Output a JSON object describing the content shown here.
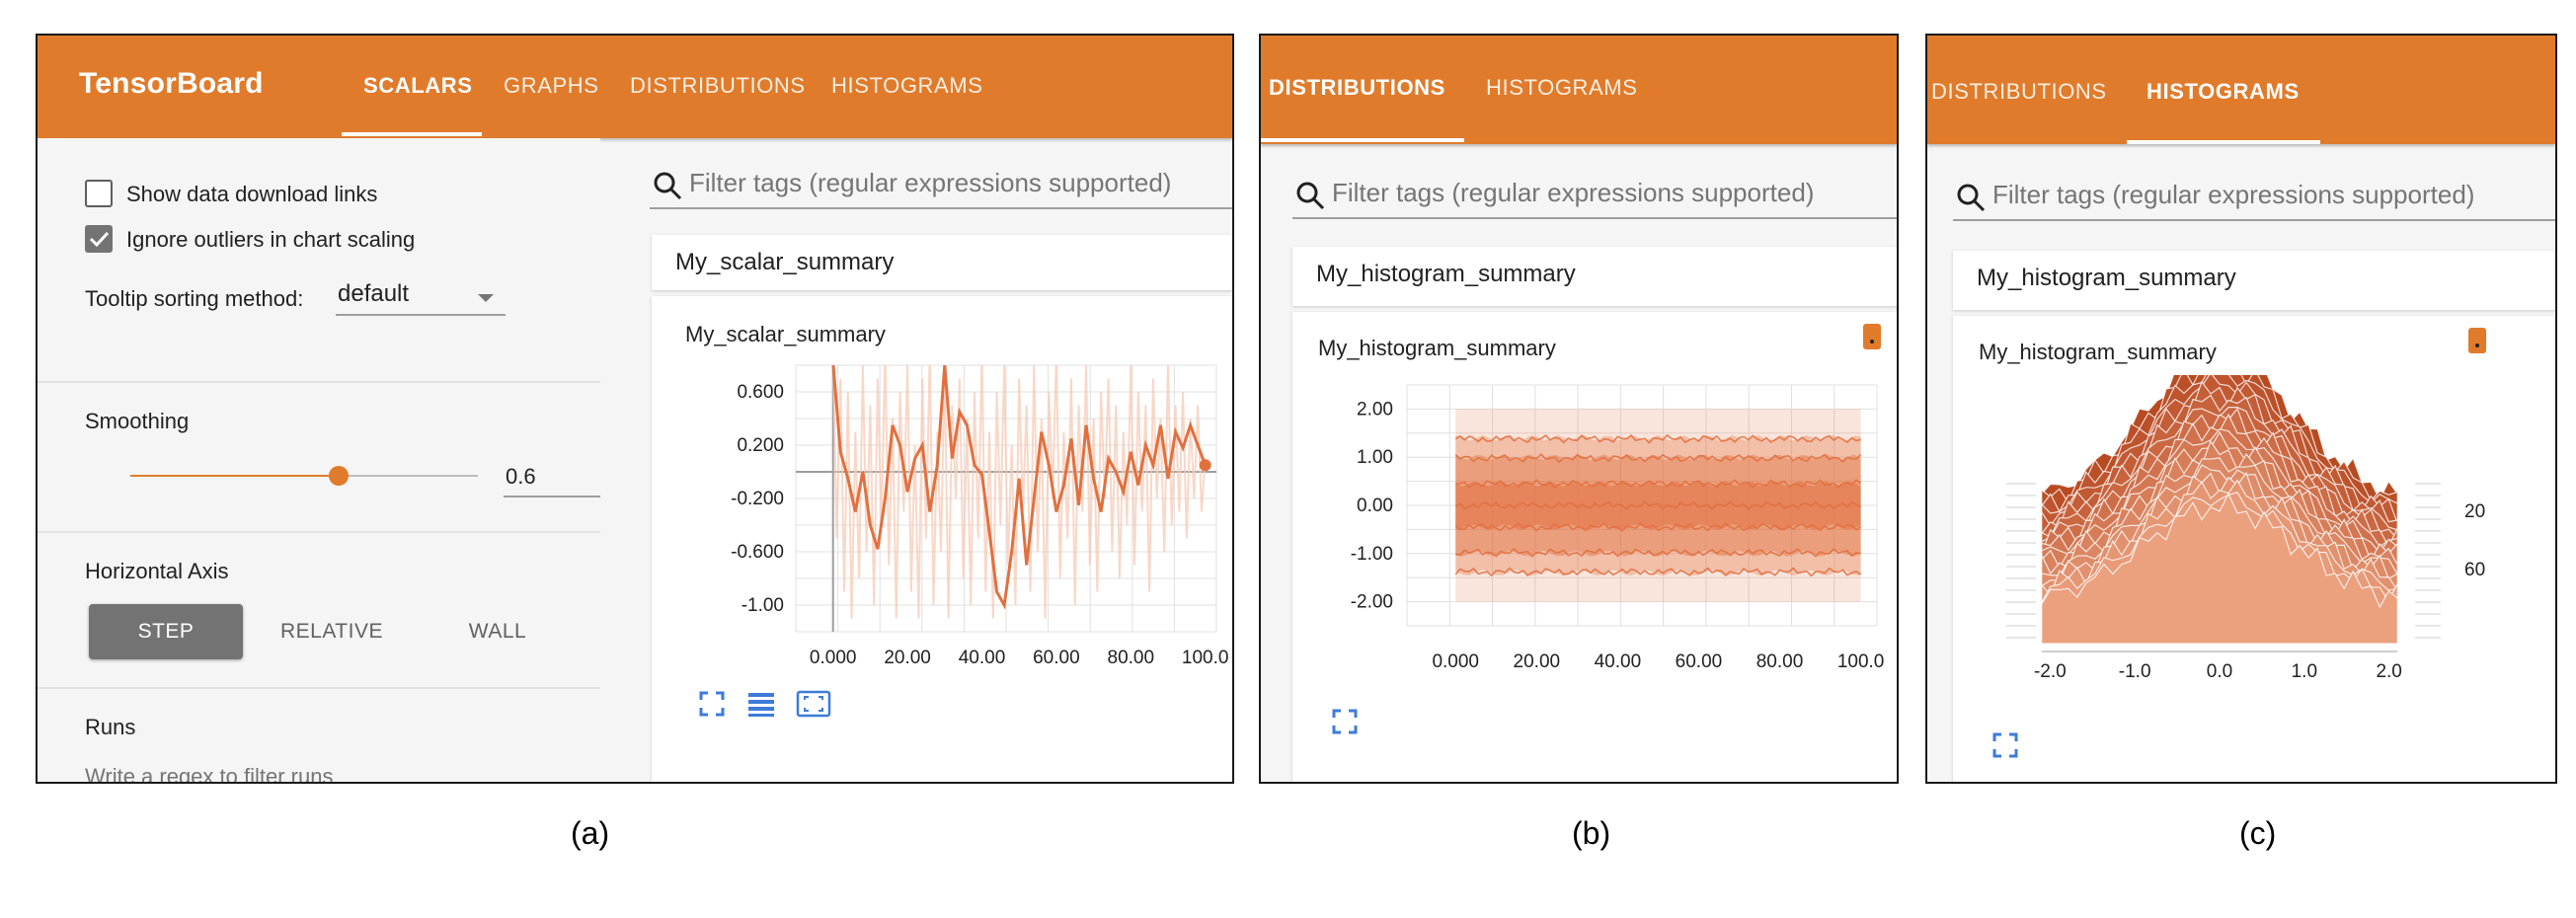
{
  "colors": {
    "accent": "#e07b2c",
    "chart_line": "#e2703f",
    "chart_light": "#f7c9b4",
    "hist_dark": "#b84a22",
    "hist_light": "#eba07e"
  },
  "panel_a": {
    "brand": "TensorBoard",
    "tabs": [
      "SCALARS",
      "GRAPHS",
      "DISTRIBUTIONS",
      "HISTOGRAMS"
    ],
    "active_tab": "SCALARS",
    "sidebar": {
      "show_download_links": {
        "label": "Show data download links",
        "checked": false
      },
      "ignore_outliers": {
        "label": "Ignore outliers in chart scaling",
        "checked": true
      },
      "tooltip_sorting": {
        "label": "Tooltip sorting method:",
        "value": "default"
      },
      "smoothing": {
        "label": "Smoothing",
        "value": "0.6",
        "fraction": 0.6
      },
      "horizontal_axis": {
        "label": "Horizontal Axis",
        "options": [
          "STEP",
          "RELATIVE",
          "WALL"
        ],
        "selected": "STEP"
      },
      "runs": {
        "label": "Runs",
        "placeholder": "Write a regex to filter runs"
      }
    },
    "search_placeholder": "Filter tags (regular expressions supported)",
    "group_header": "My_scalar_summary",
    "card_title": "My_scalar_summary",
    "icons": [
      "fullscreen-icon",
      "toggle-data-icon",
      "fit-domain-icon"
    ]
  },
  "panel_b": {
    "tabs": [
      "DISTRIBUTIONS",
      "HISTOGRAMS"
    ],
    "active_tab": "DISTRIBUTIONS",
    "search_placeholder": "Filter tags (regular expressions supported)",
    "group_header": "My_histogram_summary",
    "card_title": "My_histogram_summary",
    "icons": [
      "fullscreen-icon",
      "run-indicator-icon"
    ]
  },
  "panel_c": {
    "tabs": [
      "DISTRIBUTIONS",
      "HISTOGRAMS"
    ],
    "active_tab": "HISTOGRAMS",
    "search_placeholder": "Filter tags (regular expressions supported)",
    "group_header": "My_histogram_summary",
    "card_title": "My_histogram_summary",
    "icons": [
      "fullscreen-icon",
      "run-indicator-icon"
    ]
  },
  "captions": [
    "(a)",
    "(b)",
    "(c)"
  ],
  "chart_data": [
    {
      "type": "line",
      "title": "My_scalar_summary",
      "xlabel": "",
      "ylabel": "",
      "xlim": [
        -10,
        103
      ],
      "ylim": [
        -1.2,
        0.8
      ],
      "x_ticks": [
        "0.000",
        "20.00",
        "40.00",
        "60.00",
        "80.00",
        "100.0"
      ],
      "x_tick_values": [
        0,
        20,
        40,
        60,
        80,
        100
      ],
      "y_ticks": [
        "0.600",
        "0.200",
        "-0.200",
        "-0.600",
        "-1.00"
      ],
      "y_tick_values": [
        0.6,
        0.2,
        -0.2,
        -0.6,
        -1.0
      ],
      "grid": true,
      "series": [
        {
          "smoothed": true,
          "x": [
            0,
            2,
            4,
            6,
            8,
            10,
            12,
            14,
            16,
            18,
            20,
            22,
            24,
            26,
            28,
            30,
            32,
            34,
            36,
            38,
            40,
            42,
            44,
            46,
            48,
            50,
            52,
            54,
            56,
            58,
            60,
            62,
            64,
            66,
            68,
            70,
            72,
            74,
            76,
            78,
            80,
            82,
            84,
            86,
            88,
            90,
            92,
            94,
            96,
            98,
            100
          ],
          "y": [
            0.82,
            0.15,
            -0.05,
            -0.3,
            0.0,
            -0.4,
            -0.58,
            -0.2,
            0.35,
            0.2,
            -0.15,
            0.1,
            0.2,
            -0.3,
            0.05,
            0.8,
            0.1,
            0.45,
            0.35,
            0.05,
            -0.02,
            -0.45,
            -0.9,
            -1.0,
            -0.6,
            -0.05,
            -0.7,
            -0.2,
            0.3,
            0.05,
            -0.3,
            -0.1,
            0.25,
            -0.25,
            0.35,
            -0.05,
            -0.3,
            0.1,
            0.0,
            -0.15,
            0.15,
            -0.1,
            0.2,
            0.05,
            0.35,
            -0.05,
            0.3,
            0.18,
            0.35,
            0.2,
            0.05
          ]
        },
        {
          "smoothed": false,
          "x": [
            0,
            1,
            2,
            3,
            4,
            5,
            6,
            7,
            8,
            9,
            10,
            11,
            12,
            13,
            14,
            15,
            16,
            17,
            18,
            19,
            20,
            21,
            22,
            23,
            24,
            25,
            26,
            27,
            28,
            29,
            30,
            31,
            32,
            33,
            34,
            35,
            36,
            37,
            38,
            39,
            40,
            41,
            42,
            43,
            44,
            45,
            46,
            47,
            48,
            49,
            50,
            51,
            52,
            53,
            54,
            55,
            56,
            57,
            58,
            59,
            60,
            61,
            62,
            63,
            64,
            65,
            66,
            67,
            68,
            69,
            70,
            71,
            72,
            73,
            74,
            75,
            76,
            77,
            78,
            79,
            80,
            81,
            82,
            83,
            84,
            85,
            86,
            87,
            88,
            89,
            90,
            91,
            92,
            93,
            94,
            95,
            96,
            97,
            98,
            99,
            100
          ],
          "y": [
            0.9,
            -0.5,
            0.7,
            -0.9,
            0.6,
            -1.1,
            0.3,
            -0.8,
            0.8,
            -0.6,
            0.5,
            -1.0,
            0.7,
            -0.4,
            0.9,
            -0.7,
            0.4,
            -1.1,
            0.6,
            -0.3,
            0.8,
            -0.9,
            0.2,
            -1.1,
            0.7,
            -0.5,
            0.9,
            -1.0,
            0.3,
            -0.6,
            0.8,
            -1.1,
            0.5,
            -0.2,
            0.7,
            -0.8,
            0.4,
            -1.0,
            0.6,
            -0.5,
            0.9,
            -0.9,
            0.3,
            -1.1,
            0.6,
            -0.4,
            0.8,
            -0.7,
            0.2,
            -1.0,
            0.7,
            -0.3,
            0.5,
            -0.9,
            0.8,
            -0.6,
            0.4,
            -1.1,
            0.6,
            -0.2,
            0.9,
            -0.8,
            0.3,
            -0.5,
            0.7,
            -1.0,
            0.5,
            -0.3,
            0.8,
            -0.7,
            0.4,
            -0.9,
            0.6,
            -0.2,
            0.7,
            -0.6,
            0.5,
            -0.8,
            0.3,
            -0.4,
            0.8,
            -0.7,
            0.6,
            -0.3,
            0.5,
            -0.9,
            0.7,
            -0.2,
            0.4,
            -0.6,
            0.8,
            -0.4,
            0.5,
            -0.3,
            0.6,
            -0.5,
            0.4,
            -0.2,
            0.5,
            -0.3,
            0.1
          ]
        }
      ]
    },
    {
      "type": "area",
      "title": "My_histogram_summary",
      "xlim": [
        -12,
        104
      ],
      "ylim": [
        -2.5,
        2.5
      ],
      "x_ticks": [
        "0.000",
        "20.00",
        "40.00",
        "60.00",
        "80.00",
        "100.0"
      ],
      "x_tick_values": [
        0,
        20,
        40,
        60,
        80,
        100
      ],
      "y_ticks": [
        "2.00",
        "1.00",
        "0.00",
        "-1.00",
        "-2.00"
      ],
      "y_tick_values": [
        2,
        1,
        0,
        -1,
        -2
      ],
      "grid": true,
      "bands": [
        {
          "lower": -2.0,
          "upper": 2.0,
          "opacity": 0.18
        },
        {
          "lower": -1.4,
          "upper": 1.4,
          "opacity": 0.32
        },
        {
          "lower": -1.0,
          "upper": 1.0,
          "opacity": 0.42
        },
        {
          "lower": -0.45,
          "upper": 0.45,
          "opacity": 0.55
        }
      ],
      "percentile_lines": [
        1.38,
        0.98,
        0.45,
        0.0,
        -0.45,
        -0.98,
        -1.38
      ]
    },
    {
      "type": "area",
      "title": "My_histogram_summary",
      "xlim": [
        -2.4,
        2.4
      ],
      "x_ticks": [
        "-2.0",
        "-1.0",
        "0.0",
        "1.0",
        "2.0"
      ],
      "x_tick_values": [
        -2,
        -1,
        0,
        1,
        2
      ],
      "y_ticks": [
        "20",
        "60"
      ],
      "description_free": true,
      "slices": 18
    }
  ]
}
